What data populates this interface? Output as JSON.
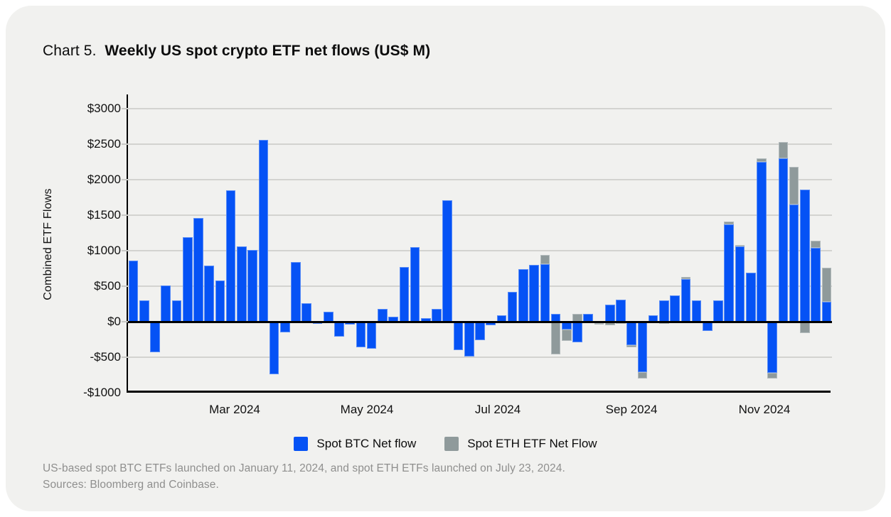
{
  "page": {
    "title_prefix": "Chart 5.",
    "title_bold": "Weekly US spot crypto ETF net flows (US$ M)",
    "footnote_line1": "US-based spot BTC ETFs launched on January 11, 2024, and spot ETH ETFs launched on July 23, 2024.",
    "footnote_line2": "Sources: Bloomberg and Coinbase."
  },
  "colors": {
    "card_background": "#f1f1ef",
    "btc_blue": "#0552f5",
    "eth_gray": "#8f9a9b",
    "gridline": "#d3d3d0",
    "axis": "#000000",
    "footnote_gray": "#8f8f8e"
  },
  "chart_data": {
    "type": "bar",
    "stacked": true,
    "title": "Weekly US spot crypto ETF net flows (US$ M)",
    "unit": "US$ M",
    "ylabel": "Combined ETF Flows",
    "ylim": [
      -1000,
      3200
    ],
    "grid": true,
    "legend_position": "bottom",
    "y_ticks": [
      {
        "label": "$3000",
        "value": 3000
      },
      {
        "label": "$2500",
        "value": 2500
      },
      {
        "label": "$2000",
        "value": 2000
      },
      {
        "label": "$1500",
        "value": 1500
      },
      {
        "label": "$1000",
        "value": 1000
      },
      {
        "label": "$500",
        "value": 500
      },
      {
        "label": "$0",
        "value": 0
      },
      {
        "label": "-$500",
        "value": -500
      },
      {
        "label": "-$1000",
        "value": -1000
      }
    ],
    "x_axis_labels": [
      {
        "label": "Mar 2024",
        "position": 0.1515
      },
      {
        "label": "May 2024",
        "position": 0.3394
      },
      {
        "label": "Jul 2024",
        "position": 0.5253
      },
      {
        "label": "Sep 2024",
        "position": 0.7152
      },
      {
        "label": "Nov 2024",
        "position": 0.904
      }
    ],
    "series": [
      {
        "name": "Spot BTC Net flow",
        "color": "#0552f5",
        "values": [
          860,
          300,
          -430,
          510,
          300,
          1190,
          1460,
          790,
          580,
          1850,
          1065,
          1010,
          2560,
          -740,
          -145,
          840,
          265,
          -30,
          145,
          -210,
          -35,
          -360,
          -380,
          185,
          75,
          775,
          1050,
          50,
          185,
          1715,
          -395,
          -485,
          -255,
          -50,
          90,
          425,
          740,
          800,
          815,
          110,
          -110,
          -290,
          110,
          -15,
          245,
          315,
          -330,
          -710,
          90,
          305,
          375,
          605,
          300,
          -125,
          300,
          1375,
          1060,
          690,
          2255,
          -715,
          2300,
          1655,
          1865,
          1040,
          285
        ]
      },
      {
        "name": "Spot ETH ETF Net Flow",
        "color": "#8f9a9b",
        "values": [
          0,
          0,
          0,
          0,
          0,
          0,
          0,
          0,
          0,
          0,
          0,
          0,
          0,
          0,
          0,
          0,
          0,
          0,
          0,
          0,
          0,
          0,
          0,
          0,
          0,
          0,
          0,
          0,
          0,
          0,
          0,
          0,
          0,
          0,
          0,
          0,
          0,
          0,
          125,
          -460,
          -155,
          110,
          0,
          -20,
          -50,
          -25,
          -25,
          -90,
          0,
          -30,
          0,
          25,
          0,
          0,
          0,
          40,
          25,
          0,
          45,
          -85,
          230,
          525,
          -155,
          100,
          475
        ]
      }
    ]
  }
}
